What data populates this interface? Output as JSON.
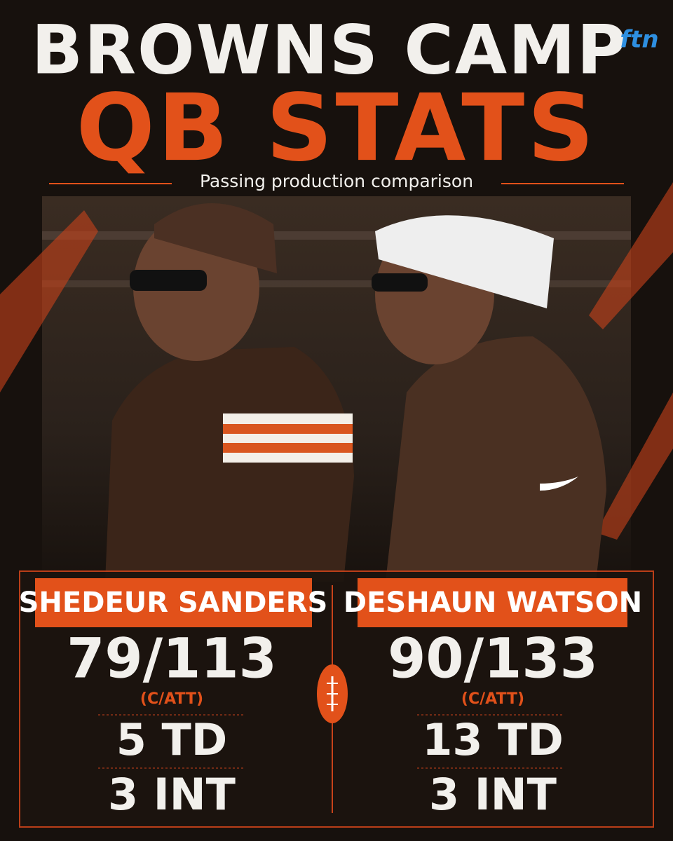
{
  "header": {
    "title": "BROWNS CAMP",
    "subtitle_big": "QB STATS",
    "tagline": "Passing production comparison",
    "logo": "ftn"
  },
  "players": [
    {
      "name": "SHEDEUR SANDERS",
      "completions": "79/113",
      "completions_label": "(C/ATT)",
      "touchdowns": "5 TD",
      "interceptions": "3 INT"
    },
    {
      "name": "DESHAUN WATSON",
      "completions": "90/133",
      "completions_label": "(C/ATT)",
      "touchdowns": "13 TD",
      "interceptions": "3 INT"
    }
  ]
}
